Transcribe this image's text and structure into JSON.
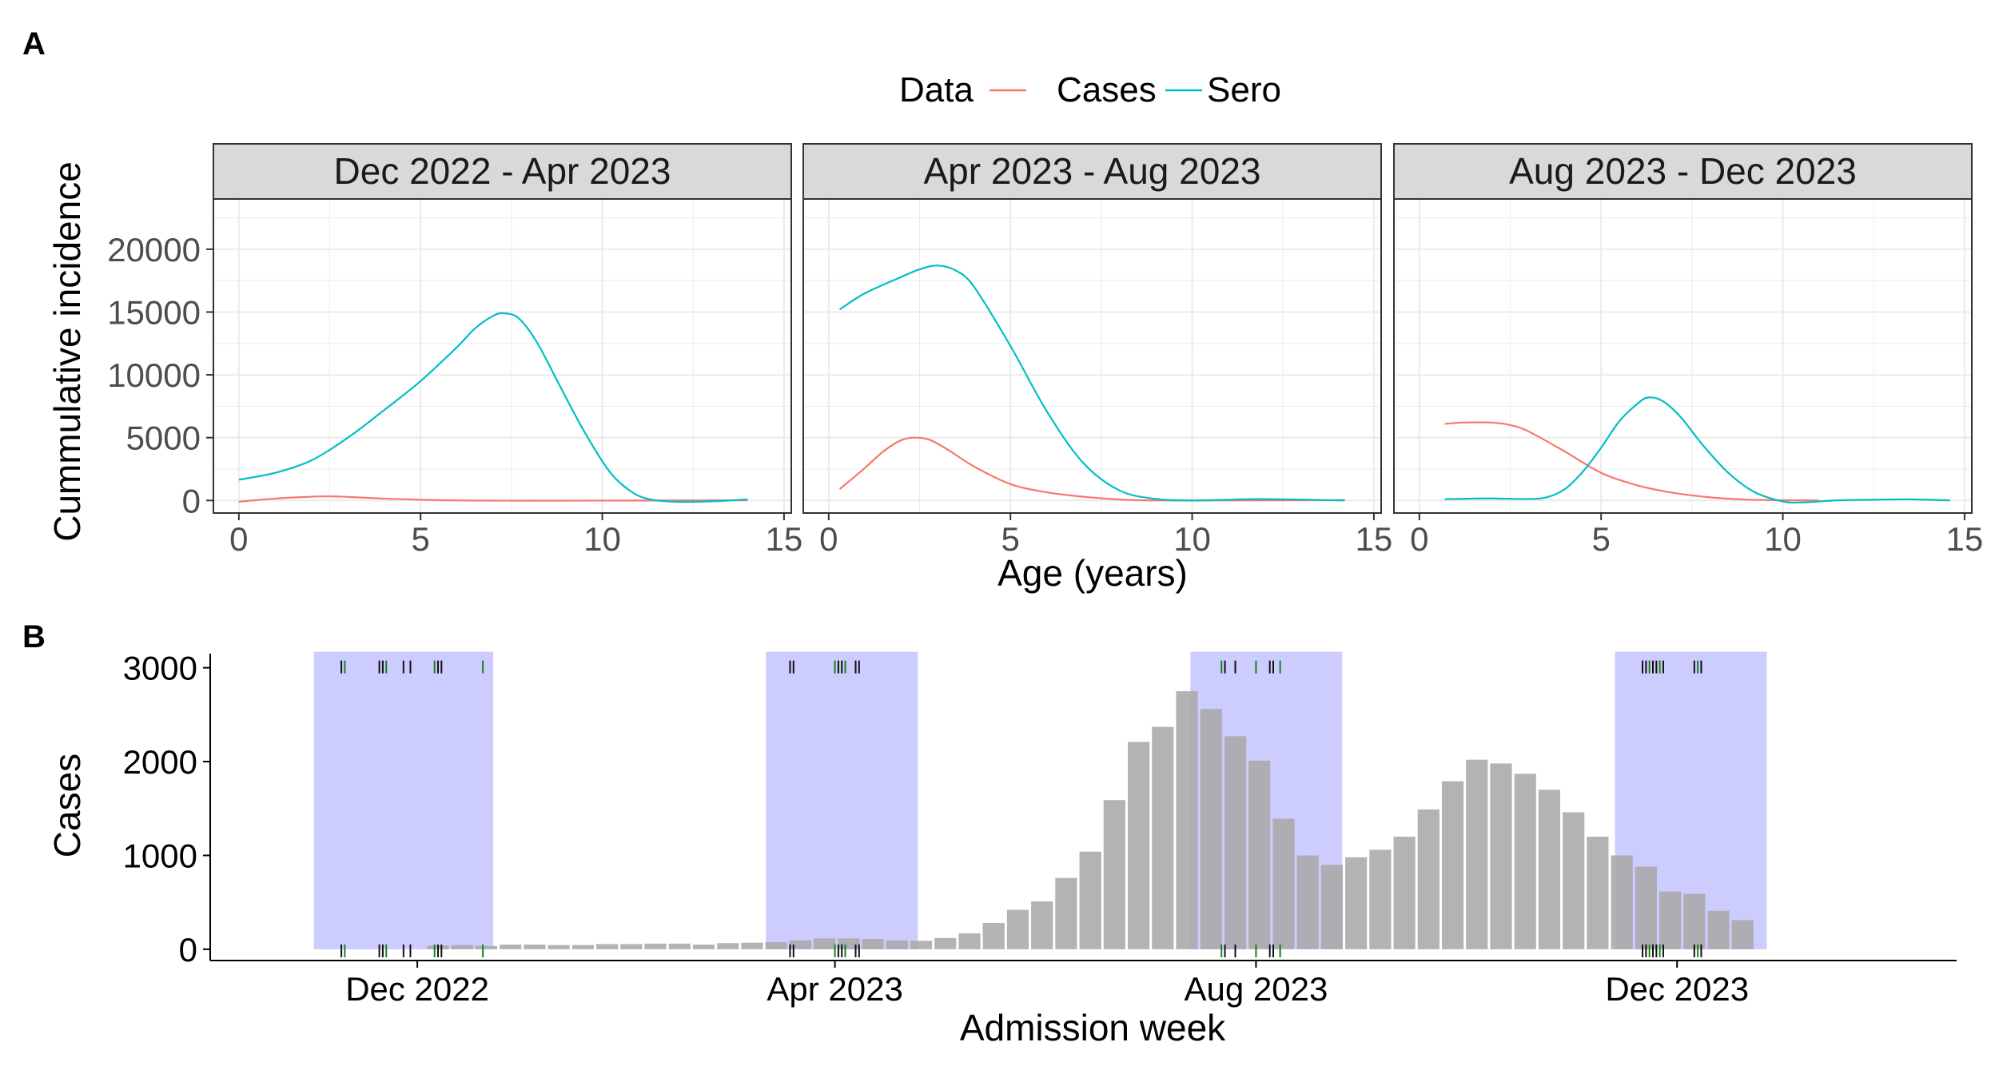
{
  "panels": {
    "a_label": "A",
    "b_label": "B"
  },
  "colors": {
    "cases_line": "#F8766D",
    "sero_line": "#00BFC4",
    "bars": "#A9A9A9",
    "highlight": "#CCCCFF",
    "strip_fill": "#D9D9D9",
    "grid": "#EBEBEB",
    "tick_dark": "#111111",
    "tick_green": "#1A7F1A"
  },
  "chart_data": [
    {
      "type": "line",
      "legend": {
        "title": "Data",
        "position": "top",
        "entries": [
          "Cases",
          "Sero"
        ]
      },
      "xlabel": "Age (years)",
      "ylabel": "Cummulative incidence",
      "xlim": [
        -0.7,
        15.2
      ],
      "ylim": [
        -1000,
        24000
      ],
      "xticks": [
        0,
        5,
        10,
        15
      ],
      "yticks": [
        0,
        5000,
        10000,
        15000,
        20000
      ],
      "grid": true,
      "facets": [
        {
          "title": "Dec 2022 - Apr 2023",
          "series": [
            {
              "name": "Cases",
              "x": [
                0,
                1,
                2,
                2.5,
                3,
                4,
                5,
                6,
                8,
                10,
                12,
                14
              ],
              "y": [
                -100,
                150,
                300,
                330,
                280,
                150,
                60,
                0,
                -20,
                -10,
                0,
                20
              ]
            },
            {
              "name": "Sero",
              "x": [
                0,
                1,
                2,
                3,
                4,
                5,
                6,
                6.5,
                7,
                7.3,
                7.7,
                8.2,
                8.8,
                9.5,
                10.2,
                10.8,
                11.3,
                12,
                13,
                14
              ],
              "y": [
                1650,
                2200,
                3200,
                5000,
                7200,
                9500,
                12200,
                13700,
                14700,
                14900,
                14500,
                12600,
                9300,
                5500,
                2300,
                700,
                100,
                -100,
                -70,
                80
              ]
            }
          ]
        },
        {
          "title": "Apr 2023 - Aug 2023",
          "series": [
            {
              "name": "Cases",
              "x": [
                0.3,
                1,
                1.5,
                2,
                2.4,
                2.8,
                3.3,
                4,
                5,
                6,
                7,
                8,
                9,
                11,
                14.2
              ],
              "y": [
                900,
                2600,
                3900,
                4800,
                5000,
                4800,
                4000,
                2700,
                1300,
                650,
                300,
                80,
                0,
                0,
                30
              ]
            },
            {
              "name": "Sero",
              "x": [
                0.3,
                1,
                2,
                2.5,
                3,
                3.5,
                4,
                5,
                6,
                7,
                8,
                9,
                10,
                11,
                12,
                14.2
              ],
              "y": [
                15200,
                16500,
                17800,
                18400,
                18700,
                18300,
                17000,
                12300,
                7100,
                3000,
                800,
                120,
                0,
                60,
                110,
                0
              ]
            }
          ]
        },
        {
          "title": "Aug 2023 - Dec 2023",
          "series": [
            {
              "name": "Cases",
              "x": [
                0.7,
                1.2,
                2,
                2.5,
                3,
                4,
                5,
                6,
                7,
                8,
                9,
                10,
                11
              ],
              "y": [
                6100,
                6200,
                6200,
                6000,
                5500,
                3900,
                2200,
                1200,
                600,
                250,
                70,
                20,
                0
              ]
            },
            {
              "name": "Sero",
              "x": [
                0.7,
                1.5,
                2,
                3,
                3.5,
                4,
                4.5,
                5,
                5.5,
                6,
                6.3,
                6.7,
                7.2,
                7.8,
                8.5,
                9.2,
                10,
                10.6,
                11.5,
                12.5,
                13.5,
                14.6
              ],
              "y": [
                100,
                150,
                160,
                120,
                250,
                900,
                2300,
                4200,
                6300,
                7700,
                8200,
                7900,
                6600,
                4400,
                2200,
                700,
                -80,
                -150,
                10,
                60,
                90,
                10
              ]
            }
          ]
        }
      ]
    },
    {
      "type": "bar",
      "xlabel": "Admission week",
      "ylabel": "Cases",
      "ylim": [
        -120,
        3150
      ],
      "yticks": [
        0,
        1000,
        2000,
        3000
      ],
      "grid": false,
      "x_date_range": [
        "2022-10-02",
        "2024-02-20"
      ],
      "x_tick_dates": [
        "2022-12-01",
        "2023-04-01",
        "2023-08-01",
        "2023-12-01"
      ],
      "x_tick_labels": [
        "Dec 2022",
        "Apr 2023",
        "Aug 2023",
        "Dec 2023"
      ],
      "bar_start": "2022-12-07",
      "bar_days": 7,
      "values": [
        40,
        45,
        35,
        50,
        50,
        45,
        45,
        55,
        55,
        60,
        60,
        50,
        65,
        70,
        75,
        95,
        115,
        115,
        110,
        95,
        90,
        120,
        170,
        280,
        420,
        510,
        760,
        1040,
        1590,
        2210,
        2370,
        2750,
        2560,
        2270,
        2010,
        1390,
        1000,
        900,
        980,
        1060,
        1200,
        1490,
        1790,
        2020,
        1980,
        1870,
        1700,
        1460,
        1200,
        1000,
        880,
        615,
        590,
        410,
        310
      ],
      "highlight_periods": [
        [
          "2022-11-01",
          "2022-12-23"
        ],
        [
          "2023-03-12",
          "2023-04-25"
        ],
        [
          "2023-07-13",
          "2023-08-26"
        ],
        [
          "2023-11-13",
          "2023-12-27"
        ]
      ],
      "rug_dates": [
        "2022-11-09",
        "2022-11-10",
        "2022-11-20",
        "2022-11-21",
        "2022-11-22",
        "2022-11-27",
        "2022-11-29",
        "2022-12-06",
        "2022-12-07",
        "2022-12-08",
        "2022-12-20",
        "2023-03-19",
        "2023-03-20",
        "2023-04-01",
        "2023-04-02",
        "2023-04-03",
        "2023-04-04",
        "2023-04-07",
        "2023-04-08",
        "2023-07-22",
        "2023-07-23",
        "2023-07-26",
        "2023-08-01",
        "2023-08-05",
        "2023-08-06",
        "2023-08-08",
        "2023-11-21",
        "2023-11-22",
        "2023-11-23",
        "2023-11-24",
        "2023-11-25",
        "2023-11-26",
        "2023-11-27",
        "2023-12-06",
        "2023-12-07",
        "2023-12-08"
      ]
    }
  ]
}
